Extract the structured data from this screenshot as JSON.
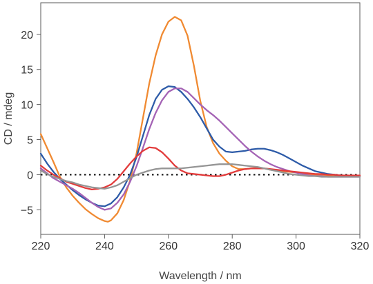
{
  "chart_data": {
    "type": "line",
    "title": "",
    "xlabel": "Wavelength / nm",
    "ylabel": "CD / mdeg",
    "xlim": [
      220,
      320
    ],
    "ylim": [
      -8.5,
      24.5
    ],
    "xticks": [
      220,
      240,
      260,
      280,
      300,
      320
    ],
    "yticks": [
      -5,
      0,
      5,
      10,
      15,
      20
    ],
    "xtick_labels": [
      "220",
      "240",
      "260",
      "280",
      "300",
      "320"
    ],
    "ytick_labels": [
      "−5",
      "0",
      "5",
      "10",
      "15",
      "20"
    ],
    "grid": false,
    "legend": "none",
    "zero_line": {
      "y": 0,
      "style": "dotted",
      "color": "#111111"
    },
    "series": [
      {
        "color": "#F08A32",
        "points": [
          [
            220,
            5.8
          ],
          [
            222,
            3.8
          ],
          [
            224,
            1.8
          ],
          [
            226,
            -0.3
          ],
          [
            228,
            -1.8
          ],
          [
            230,
            -3.0
          ],
          [
            232,
            -4.0
          ],
          [
            234,
            -4.9
          ],
          [
            236,
            -5.6
          ],
          [
            238,
            -6.2
          ],
          [
            240,
            -6.6
          ],
          [
            241,
            -6.7
          ],
          [
            242,
            -6.5
          ],
          [
            244,
            -5.5
          ],
          [
            246,
            -3.6
          ],
          [
            248,
            -0.8
          ],
          [
            250,
            3.0
          ],
          [
            252,
            8.0
          ],
          [
            254,
            13.0
          ],
          [
            256,
            17.0
          ],
          [
            258,
            20.0
          ],
          [
            260,
            21.8
          ],
          [
            262,
            22.5
          ],
          [
            264,
            22.0
          ],
          [
            266,
            19.8
          ],
          [
            268,
            15.5
          ],
          [
            270,
            10.5
          ],
          [
            272,
            6.8
          ],
          [
            274,
            4.5
          ],
          [
            276,
            3.0
          ],
          [
            278,
            2.0
          ],
          [
            280,
            1.2
          ],
          [
            282,
            0.8
          ],
          [
            284,
            0.8
          ],
          [
            286,
            0.9
          ],
          [
            288,
            1.0
          ],
          [
            290,
            0.9
          ],
          [
            292,
            0.7
          ],
          [
            294,
            0.6
          ],
          [
            296,
            0.5
          ],
          [
            298,
            0.4
          ],
          [
            300,
            0.3
          ],
          [
            302,
            0.2
          ],
          [
            304,
            0.1
          ],
          [
            306,
            0.0
          ],
          [
            308,
            -0.1
          ],
          [
            310,
            -0.1
          ],
          [
            312,
            -0.2
          ],
          [
            314,
            -0.2
          ],
          [
            316,
            -0.2
          ],
          [
            318,
            -0.2
          ],
          [
            320,
            -0.2
          ]
        ]
      },
      {
        "color": "#2D5BA8",
        "points": [
          [
            220,
            3.0
          ],
          [
            222,
            1.6
          ],
          [
            224,
            0.4
          ],
          [
            226,
            -0.6
          ],
          [
            228,
            -1.4
          ],
          [
            230,
            -2.2
          ],
          [
            232,
            -2.9
          ],
          [
            234,
            -3.5
          ],
          [
            236,
            -4.0
          ],
          [
            238,
            -4.4
          ],
          [
            240,
            -4.5
          ],
          [
            242,
            -4.1
          ],
          [
            244,
            -3.2
          ],
          [
            246,
            -1.8
          ],
          [
            248,
            0.0
          ],
          [
            250,
            2.5
          ],
          [
            252,
            5.5
          ],
          [
            254,
            8.5
          ],
          [
            256,
            10.8
          ],
          [
            258,
            12.1
          ],
          [
            260,
            12.6
          ],
          [
            262,
            12.5
          ],
          [
            264,
            11.8
          ],
          [
            266,
            10.8
          ],
          [
            268,
            9.6
          ],
          [
            270,
            8.2
          ],
          [
            272,
            6.6
          ],
          [
            274,
            5.0
          ],
          [
            276,
            4.0
          ],
          [
            278,
            3.3
          ],
          [
            280,
            3.2
          ],
          [
            282,
            3.3
          ],
          [
            284,
            3.4
          ],
          [
            286,
            3.6
          ],
          [
            288,
            3.7
          ],
          [
            290,
            3.7
          ],
          [
            292,
            3.5
          ],
          [
            294,
            3.2
          ],
          [
            296,
            2.8
          ],
          [
            298,
            2.3
          ],
          [
            300,
            1.8
          ],
          [
            302,
            1.3
          ],
          [
            304,
            0.9
          ],
          [
            306,
            0.5
          ],
          [
            308,
            0.3
          ],
          [
            310,
            0.1
          ],
          [
            312,
            0.0
          ],
          [
            314,
            -0.1
          ],
          [
            316,
            -0.2
          ],
          [
            318,
            -0.2
          ],
          [
            320,
            -0.2
          ]
        ]
      },
      {
        "color": "#A463B5",
        "points": [
          [
            220,
            0.9
          ],
          [
            222,
            0.2
          ],
          [
            224,
            -0.5
          ],
          [
            226,
            -1.0
          ],
          [
            228,
            -1.5
          ],
          [
            230,
            -2.0
          ],
          [
            232,
            -2.6
          ],
          [
            234,
            -3.3
          ],
          [
            236,
            -4.0
          ],
          [
            238,
            -4.6
          ],
          [
            240,
            -5.0
          ],
          [
            242,
            -4.8
          ],
          [
            244,
            -4.0
          ],
          [
            246,
            -2.8
          ],
          [
            248,
            -1.0
          ],
          [
            250,
            1.2
          ],
          [
            252,
            3.8
          ],
          [
            254,
            6.5
          ],
          [
            256,
            8.8
          ],
          [
            258,
            10.6
          ],
          [
            260,
            11.8
          ],
          [
            262,
            12.3
          ],
          [
            264,
            12.3
          ],
          [
            266,
            11.8
          ],
          [
            268,
            10.9
          ],
          [
            270,
            10.0
          ],
          [
            272,
            9.2
          ],
          [
            274,
            8.5
          ],
          [
            276,
            7.7
          ],
          [
            278,
            6.8
          ],
          [
            280,
            5.9
          ],
          [
            282,
            5.0
          ],
          [
            284,
            4.1
          ],
          [
            286,
            3.3
          ],
          [
            288,
            2.6
          ],
          [
            290,
            2.0
          ],
          [
            292,
            1.5
          ],
          [
            294,
            1.1
          ],
          [
            296,
            0.8
          ],
          [
            298,
            0.5
          ],
          [
            300,
            0.3
          ],
          [
            302,
            0.1
          ],
          [
            304,
            -0.1
          ],
          [
            306,
            -0.2
          ],
          [
            308,
            -0.2
          ],
          [
            310,
            -0.3
          ],
          [
            312,
            -0.3
          ],
          [
            314,
            -0.3
          ],
          [
            316,
            -0.3
          ],
          [
            318,
            -0.3
          ],
          [
            320,
            -0.3
          ]
        ]
      },
      {
        "color": "#E23B3B",
        "points": [
          [
            220,
            1.3
          ],
          [
            222,
            0.6
          ],
          [
            224,
            0.0
          ],
          [
            226,
            -0.5
          ],
          [
            228,
            -1.0
          ],
          [
            230,
            -1.3
          ],
          [
            232,
            -1.6
          ],
          [
            234,
            -1.9
          ],
          [
            236,
            -2.1
          ],
          [
            238,
            -2.0
          ],
          [
            240,
            -1.8
          ],
          [
            242,
            -1.4
          ],
          [
            244,
            -0.6
          ],
          [
            246,
            0.5
          ],
          [
            248,
            1.6
          ],
          [
            250,
            2.6
          ],
          [
            252,
            3.4
          ],
          [
            254,
            3.9
          ],
          [
            256,
            3.8
          ],
          [
            258,
            3.2
          ],
          [
            260,
            2.3
          ],
          [
            262,
            1.3
          ],
          [
            264,
            0.6
          ],
          [
            266,
            0.2
          ],
          [
            268,
            0.1
          ],
          [
            270,
            0.0
          ],
          [
            272,
            -0.1
          ],
          [
            274,
            -0.2
          ],
          [
            276,
            -0.2
          ],
          [
            278,
            0.0
          ],
          [
            280,
            0.3
          ],
          [
            282,
            0.6
          ],
          [
            284,
            0.8
          ],
          [
            286,
            0.9
          ],
          [
            288,
            0.9
          ],
          [
            290,
            0.9
          ],
          [
            292,
            0.8
          ],
          [
            294,
            0.7
          ],
          [
            296,
            0.6
          ],
          [
            298,
            0.5
          ],
          [
            300,
            0.4
          ],
          [
            302,
            0.3
          ],
          [
            304,
            0.2
          ],
          [
            306,
            0.1
          ],
          [
            308,
            0.1
          ],
          [
            310,
            0.0
          ],
          [
            312,
            0.0
          ],
          [
            314,
            -0.1
          ],
          [
            316,
            -0.1
          ],
          [
            318,
            -0.1
          ],
          [
            320,
            -0.1
          ]
        ]
      },
      {
        "color": "#959595",
        "points": [
          [
            220,
            0.6
          ],
          [
            222,
            0.1
          ],
          [
            224,
            -0.3
          ],
          [
            226,
            -0.6
          ],
          [
            228,
            -0.9
          ],
          [
            230,
            -1.1
          ],
          [
            232,
            -1.4
          ],
          [
            234,
            -1.6
          ],
          [
            236,
            -1.8
          ],
          [
            238,
            -1.9
          ],
          [
            240,
            -2.0
          ],
          [
            242,
            -1.8
          ],
          [
            244,
            -1.5
          ],
          [
            246,
            -1.0
          ],
          [
            248,
            -0.5
          ],
          [
            250,
            0.0
          ],
          [
            252,
            0.3
          ],
          [
            254,
            0.6
          ],
          [
            256,
            0.8
          ],
          [
            258,
            0.9
          ],
          [
            260,
            0.9
          ],
          [
            262,
            0.9
          ],
          [
            264,
            0.9
          ],
          [
            266,
            1.0
          ],
          [
            268,
            1.1
          ],
          [
            270,
            1.2
          ],
          [
            272,
            1.3
          ],
          [
            274,
            1.4
          ],
          [
            276,
            1.5
          ],
          [
            278,
            1.5
          ],
          [
            280,
            1.5
          ],
          [
            282,
            1.4
          ],
          [
            284,
            1.3
          ],
          [
            286,
            1.2
          ],
          [
            288,
            1.1
          ],
          [
            290,
            0.9
          ],
          [
            292,
            0.7
          ],
          [
            294,
            0.5
          ],
          [
            296,
            0.3
          ],
          [
            298,
            0.1
          ],
          [
            300,
            0.0
          ],
          [
            302,
            -0.1
          ],
          [
            304,
            -0.2
          ],
          [
            306,
            -0.2
          ],
          [
            308,
            -0.3
          ],
          [
            310,
            -0.3
          ],
          [
            312,
            -0.3
          ],
          [
            314,
            -0.3
          ],
          [
            316,
            -0.3
          ],
          [
            318,
            -0.3
          ],
          [
            320,
            -0.3
          ]
        ]
      }
    ]
  }
}
